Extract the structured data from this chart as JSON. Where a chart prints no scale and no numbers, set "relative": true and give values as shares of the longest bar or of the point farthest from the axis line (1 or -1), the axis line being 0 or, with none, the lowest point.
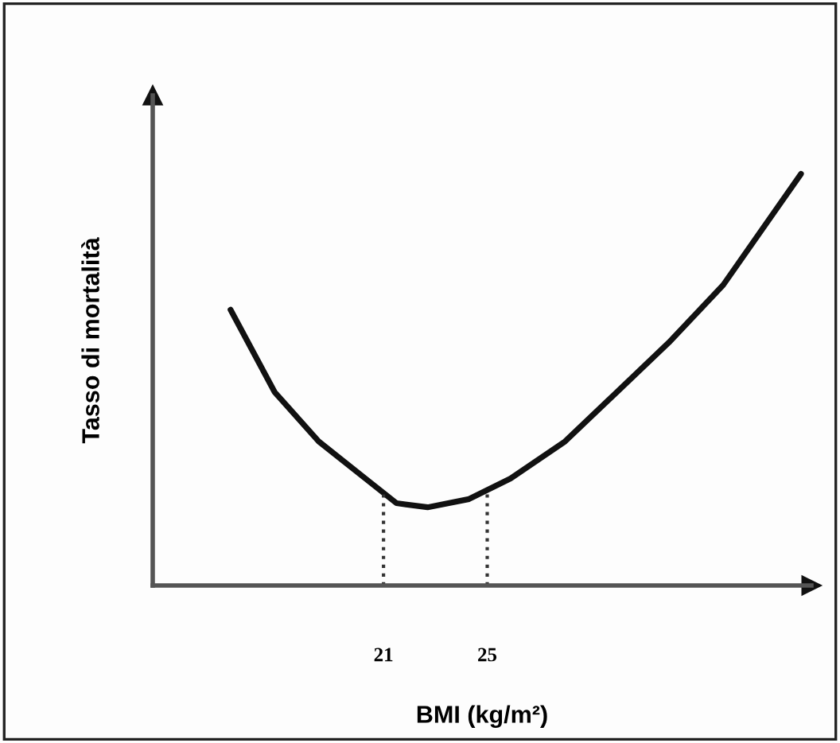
{
  "chart_data": {
    "type": "line",
    "relative": true,
    "xlabel": "BMI (kg/m²)",
    "ylabel": "Tasso di mortalità",
    "x": [
      15.1,
      16.8,
      18.5,
      20.3,
      21.5,
      22.7,
      24.3,
      25.9,
      28.0,
      30.0,
      32.0,
      34.1,
      37.1
    ],
    "series": [
      {
        "color": "#111111",
        "values": [
          0.67,
          0.47,
          0.35,
          0.26,
          0.2,
          0.19,
          0.21,
          0.26,
          0.35,
          0.47,
          0.59,
          0.73,
          1.0
        ]
      }
    ],
    "xlim": [
      12.1,
      37.5
    ],
    "xticks": [
      21,
      25
    ],
    "ref_lines": [
      {
        "axis": "x",
        "value": 21,
        "line_style": "dotted",
        "color": "#333333"
      },
      {
        "axis": "x",
        "value": 25,
        "line_style": "dotted",
        "color": "#333333"
      }
    ],
    "grid": false,
    "legend": false,
    "tick_labels": "x",
    "line_style": "solid",
    "marker": "none"
  }
}
